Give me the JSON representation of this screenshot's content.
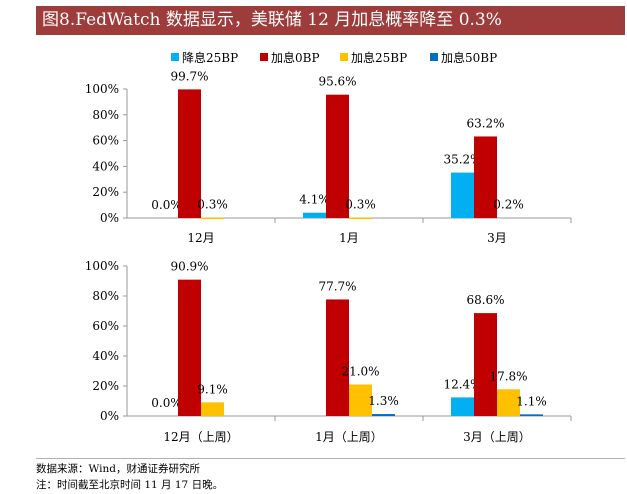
{
  "title": "图8.FedWatch 数据显示，美联储 12 月加息概率降至 0.3%",
  "footer": {
    "source": "数据来源：Wind，财通证券研究所",
    "note": "注：时间截至北京时间 11 月 17 日晚。"
  },
  "colors": {
    "title_bg": "#9e3b3b",
    "series": [
      "#00b0f0",
      "#c00000",
      "#ffc000",
      "#0070c0"
    ]
  },
  "legend": [
    "降息25BP",
    "加息0BP",
    "加息25BP",
    "加息50BP"
  ],
  "chart_data": [
    {
      "type": "bar",
      "categories": [
        "12月",
        "1月",
        "3月"
      ],
      "series": [
        {
          "name": "降息25BP",
          "values": [
            0.0,
            4.1,
            35.2
          ],
          "labels": [
            "0.0%",
            "4.1%",
            "35.2%"
          ]
        },
        {
          "name": "加息0BP",
          "values": [
            99.7,
            95.6,
            63.2
          ],
          "labels": [
            "99.7%",
            "95.6%",
            "63.2%"
          ]
        },
        {
          "name": "加息25BP",
          "values": [
            0.3,
            0.3,
            0.2
          ],
          "labels": [
            "0.3%",
            "0.3%",
            "0.2%"
          ]
        },
        {
          "name": "加息50BP",
          "values": [
            0.0,
            0.0,
            0.0
          ],
          "labels": [
            "",
            "",
            ""
          ]
        }
      ],
      "ylim": [
        0,
        100
      ],
      "yticks": [
        "0%",
        "20%",
        "40%",
        "60%",
        "80%",
        "100%"
      ]
    },
    {
      "type": "bar",
      "categories": [
        "12月（上周）",
        "1月（上周）",
        "3月（上周）"
      ],
      "series": [
        {
          "name": "降息25BP",
          "values": [
            0.0,
            0.0,
            12.4
          ],
          "labels": [
            "0.0%",
            "",
            "12.4%"
          ]
        },
        {
          "name": "加息0BP",
          "values": [
            90.9,
            77.7,
            68.6
          ],
          "labels": [
            "90.9%",
            "77.7%",
            "68.6%"
          ]
        },
        {
          "name": "加息25BP",
          "values": [
            9.1,
            21.0,
            17.8
          ],
          "labels": [
            "9.1%",
            "21.0%",
            "17.8%"
          ]
        },
        {
          "name": "加息50BP",
          "values": [
            0.0,
            1.3,
            1.1
          ],
          "labels": [
            "",
            "1.3%",
            "1.1%"
          ]
        }
      ],
      "ylim": [
        0,
        100
      ],
      "yticks": [
        "0%",
        "20%",
        "40%",
        "60%",
        "80%",
        "100%"
      ]
    }
  ]
}
